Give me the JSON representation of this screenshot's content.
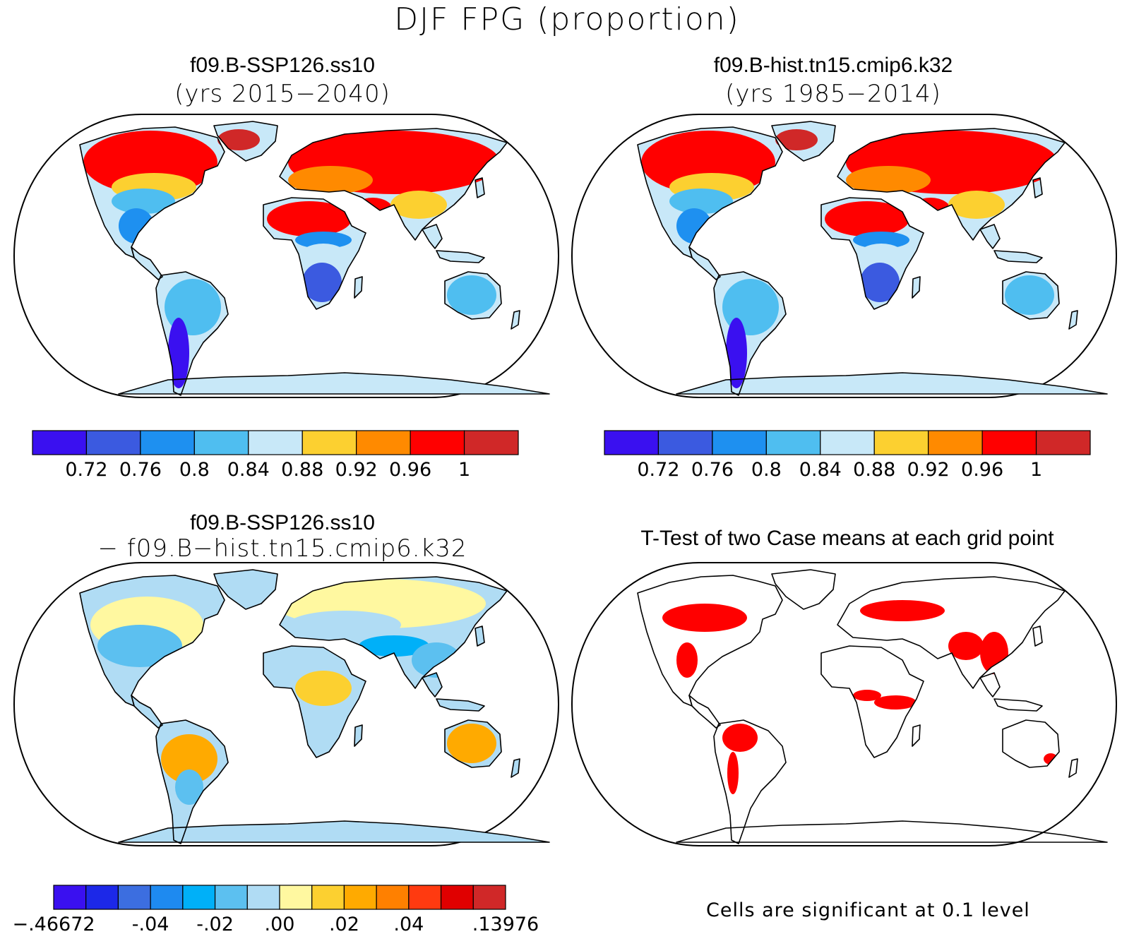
{
  "figure": {
    "title": "DJF FPG (proportion)"
  },
  "panels": [
    {
      "id": "ssp126",
      "title": "f09.B-SSP126.ss10",
      "subtitle": "(yrs 2015−2040)",
      "kind": "absolute"
    },
    {
      "id": "hist",
      "title": "f09.B-hist.tn15.cmip6.k32",
      "subtitle": "(yrs 1985−2014)",
      "kind": "absolute"
    },
    {
      "id": "diff",
      "title": "f09.B-SSP126.ss10",
      "subtitle": "− f09.B−hist.tn15.cmip6.k32",
      "kind": "difference"
    },
    {
      "id": "ttest",
      "title": "T-Test of two Case means at each grid point",
      "subtitle": "",
      "kind": "significance",
      "significance_color": "#ff0000",
      "note": "Cells are significant at 0.1 level"
    }
  ],
  "colorbars": {
    "absolute": {
      "colors": [
        "#3a10f0",
        "#3b5ae0",
        "#1e90f0",
        "#4fbef0",
        "#c8e8f8",
        "#fcd030",
        "#ff8a00",
        "#ff0000",
        "#d02828"
      ],
      "labels": [
        "0.72",
        "0.76",
        "0.8",
        "0.84",
        "0.88",
        "0.92",
        "0.96",
        "1"
      ]
    },
    "difference": {
      "colors": [
        "#3a10f0",
        "#1c28e8",
        "#3c6ee0",
        "#1e8af0",
        "#00b0f8",
        "#5cc0f0",
        "#b0dcf4",
        "#fff8a0",
        "#fcd030",
        "#ffaa00",
        "#ff8000",
        "#ff3a10",
        "#e00000",
        "#d02828"
      ],
      "labels": [
        ".46672",
        "-.04",
        "-.02",
        ".00",
        ".02",
        ".04",
        ".13976"
      ],
      "first_label": "−.46672"
    }
  }
}
